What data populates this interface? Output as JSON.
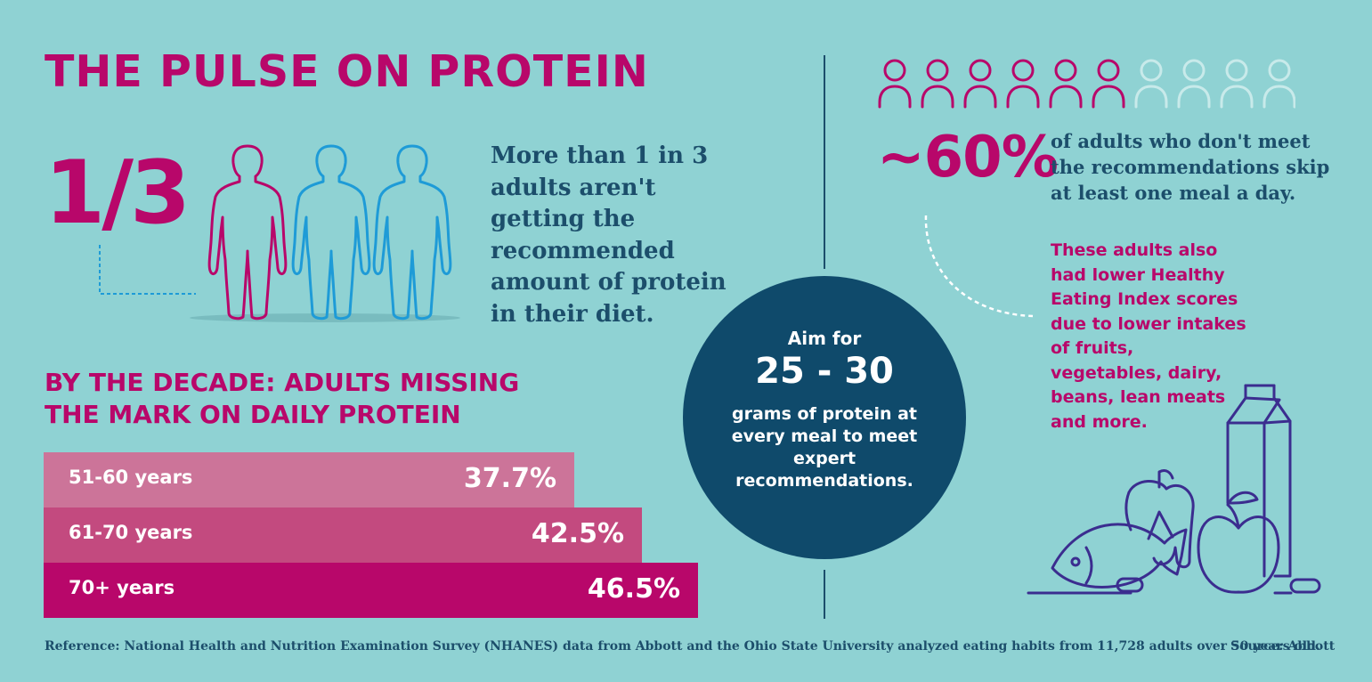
{
  "title": "THE PULSE ON PROTEIN",
  "stat_one_third": "1/3",
  "intro_text": "More than 1 in 3 adults aren't getting the recommended amount of protein in their diet.",
  "people_icons": [
    "person-icon-magenta",
    "person-icon-blue",
    "person-icon-blue"
  ],
  "decade_section": {
    "title_line1": "BY THE DECADE: ADULTS MISSING",
    "title_line2": "THE MARK ON DAILY PROTEIN"
  },
  "chart_data": {
    "type": "bar",
    "orientation": "horizontal",
    "title": "BY THE DECADE: ADULTS MISSING THE MARK ON DAILY PROTEIN",
    "categories": [
      "51-60 years",
      "61-70 years",
      "70+ years"
    ],
    "values": [
      37.7,
      42.5,
      46.5
    ],
    "value_labels": [
      "37.7%",
      "42.5%",
      "46.5%"
    ],
    "unit": "%",
    "colors": [
      "#cc7499",
      "#c34a7f",
      "#b8076a"
    ],
    "xlabel": "",
    "ylabel": "",
    "grid": false,
    "legend": "none"
  },
  "aim": {
    "line1": "Aim for",
    "big": "25 - 30",
    "body": "grams of protein at every meal to meet expert recommendations."
  },
  "sixty": {
    "value": "~60%",
    "text": "of adults who don't meet the recommendations skip at least one meal a day.",
    "icons_total": 10,
    "icons_highlighted": 6
  },
  "hei_text": "These adults also had lower Healthy Eating Index scores due to lower intakes of fruits, vegetables, dairy, beans, lean meats and more.",
  "food_icons": [
    "milk-carton-icon",
    "pepper-icon",
    "fish-icon",
    "apple-icon",
    "bean-icon"
  ],
  "reference": "Reference: National Health and Nutrition Examination Survey (NHANES) data from Abbott and the Ohio State University analyzed eating habits from 11,728 adults over 50 years old.",
  "source": "Source: Abbott",
  "colors": {
    "background": "#8fd2d3",
    "magenta": "#b8076a",
    "navy": "#1c4e6b",
    "circle": "#0f4a6b",
    "blue_icon": "#1e9bd7",
    "icon_purple": "#3b2d8f"
  }
}
